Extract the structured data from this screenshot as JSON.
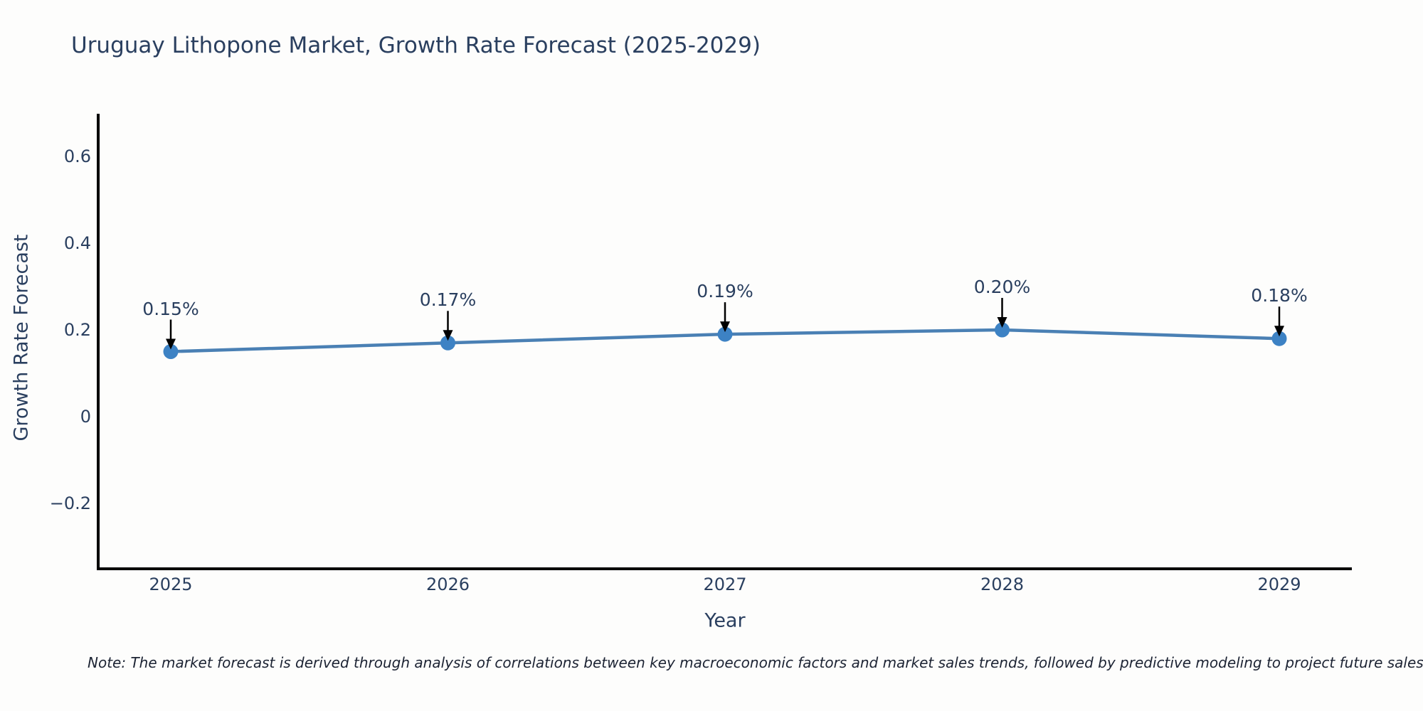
{
  "chart_data": {
    "type": "line",
    "title": "Uruguay Lithopone Market, Growth Rate Forecast (2025-2029)",
    "xlabel": "Year",
    "ylabel": "Growth Rate Forecast",
    "categories": [
      "2025",
      "2026",
      "2027",
      "2028",
      "2029"
    ],
    "series": [
      {
        "name": "Growth Rate Forecast",
        "values": [
          0.15,
          0.17,
          0.19,
          0.2,
          0.18
        ],
        "point_labels": [
          "0.15%",
          "0.17%",
          "0.19%",
          "0.20%",
          "0.18%"
        ]
      }
    ],
    "yticks": [
      {
        "value": 0.6,
        "label": "0.6"
      },
      {
        "value": 0.4,
        "label": "0.4"
      },
      {
        "value": 0.2,
        "label": "0.2"
      },
      {
        "value": 0,
        "label": "0"
      },
      {
        "value": -0.2,
        "label": "−0.2"
      }
    ],
    "ylim": [
      -0.35,
      0.7
    ],
    "grid": false,
    "legend_position": "none",
    "annotation_style": "value-above-with-down-arrow"
  },
  "note": "Note: The market forecast is derived through analysis of correlations between key macroeconomic factors and market sales trends, followed by predictive modeling to project future sales.",
  "colors": {
    "text": "#2a3f5f",
    "axis_line": "#000000",
    "series_line": "#4a80b4",
    "marker_fill": "#3d82c4",
    "arrow": "#000000",
    "background": "#fdfdfc"
  }
}
